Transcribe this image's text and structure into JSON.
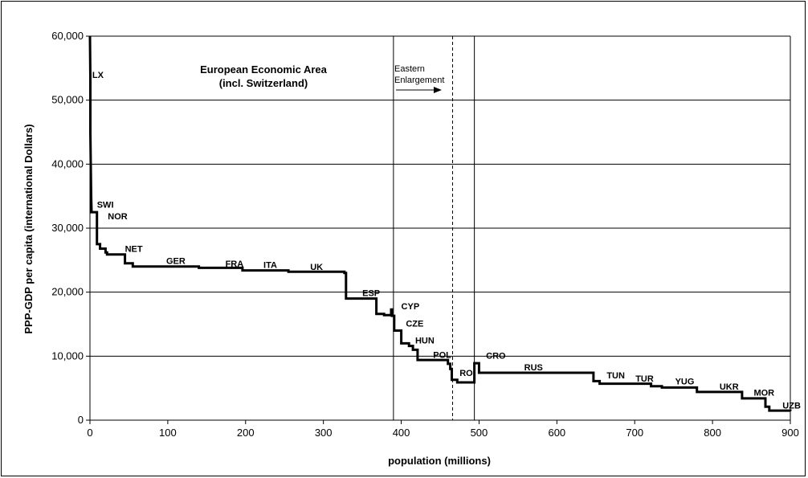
{
  "chart_data": {
    "type": "line",
    "step": true,
    "xlabel": "population (millions)",
    "ylabel": "PPP-GDP per capita (international Dollars)",
    "xlim": [
      0,
      900
    ],
    "ylim": [
      0,
      60000
    ],
    "x_ticks": [
      0,
      100,
      200,
      300,
      400,
      500,
      600,
      700,
      800,
      900
    ],
    "y_ticks": [
      0,
      10000,
      20000,
      30000,
      40000,
      50000,
      60000
    ],
    "x_tick_labels": [
      "0",
      "100",
      "200",
      "300",
      "400",
      "500",
      "600",
      "700",
      "800",
      "900"
    ],
    "y_tick_labels": [
      "0",
      "10,000",
      "20,000",
      "30,000",
      "40,000",
      "50,000",
      "60,000"
    ],
    "grid": "horizontal",
    "series": [
      {
        "color": "#000000",
        "points": [
          [
            0,
            60000
          ],
          [
            0.5,
            53500
          ],
          [
            0.5,
            45000
          ],
          [
            1,
            40000
          ],
          [
            1.5,
            35000
          ],
          [
            2,
            33000
          ],
          [
            2,
            32500
          ],
          [
            9,
            32500
          ],
          [
            9,
            27500
          ],
          [
            13,
            27500
          ],
          [
            13,
            26800
          ],
          [
            20,
            26800
          ],
          [
            20,
            26200
          ],
          [
            22,
            26200
          ],
          [
            22,
            25900
          ],
          [
            45,
            25900
          ],
          [
            45,
            24500
          ],
          [
            55,
            24500
          ],
          [
            55,
            24000
          ],
          [
            140,
            24000
          ],
          [
            140,
            23800
          ],
          [
            196,
            23800
          ],
          [
            196,
            23400
          ],
          [
            255,
            23400
          ],
          [
            255,
            23200
          ],
          [
            327,
            23200
          ],
          [
            327,
            23000
          ],
          [
            329,
            23000
          ],
          [
            329,
            19000
          ],
          [
            368,
            19000
          ],
          [
            368,
            16600
          ],
          [
            378,
            16600
          ],
          [
            378,
            16400
          ],
          [
            387,
            16400
          ],
          [
            387,
            17300
          ],
          [
            388,
            17300
          ],
          [
            388,
            16300
          ],
          [
            391,
            16300
          ],
          [
            391,
            14000
          ],
          [
            400,
            14000
          ],
          [
            400,
            12000
          ],
          [
            410,
            12000
          ],
          [
            410,
            11600
          ],
          [
            415,
            11600
          ],
          [
            415,
            11000
          ],
          [
            421,
            11000
          ],
          [
            421,
            9400
          ],
          [
            460,
            9400
          ],
          [
            460,
            8800
          ],
          [
            463,
            8800
          ],
          [
            463,
            8000
          ],
          [
            465,
            8000
          ],
          [
            465,
            6300
          ],
          [
            472,
            6300
          ],
          [
            472,
            5900
          ],
          [
            494,
            5900
          ],
          [
            494,
            8900
          ],
          [
            500,
            8900
          ],
          [
            500,
            7400
          ],
          [
            647,
            7400
          ],
          [
            647,
            6100
          ],
          [
            655,
            6100
          ],
          [
            655,
            5700
          ],
          [
            721,
            5700
          ],
          [
            721,
            5300
          ],
          [
            735,
            5300
          ],
          [
            735,
            5100
          ],
          [
            780,
            5100
          ],
          [
            780,
            4400
          ],
          [
            838,
            4400
          ],
          [
            838,
            3400
          ],
          [
            868,
            3400
          ],
          [
            868,
            2100
          ],
          [
            873,
            2100
          ],
          [
            873,
            1500
          ],
          [
            900,
            1500
          ],
          [
            900,
            1400
          ]
        ]
      }
    ],
    "country_labels": [
      {
        "text": "LX",
        "x": 3,
        "y": 53500
      },
      {
        "text": "SWI",
        "x": 9,
        "y": 33200
      },
      {
        "text": "NOR",
        "x": 23,
        "y": 31400
      },
      {
        "text": "NET",
        "x": 45,
        "y": 26300
      },
      {
        "text": "GER",
        "x": 98,
        "y": 24400
      },
      {
        "text": "FRA",
        "x": 174,
        "y": 24000
      },
      {
        "text": "ITA",
        "x": 223,
        "y": 23800
      },
      {
        "text": "UK",
        "x": 283,
        "y": 23500
      },
      {
        "text": "ESP",
        "x": 350,
        "y": 19400
      },
      {
        "text": "CYP",
        "x": 400,
        "y": 17300
      },
      {
        "text": "CZE",
        "x": 406,
        "y": 14600
      },
      {
        "text": "HUN",
        "x": 418,
        "y": 12000
      },
      {
        "text": "POL",
        "x": 441,
        "y": 9700
      },
      {
        "text": "CRO",
        "x": 509,
        "y": 9600
      },
      {
        "text": "RO",
        "x": 475,
        "y": 6900
      },
      {
        "text": "RUS",
        "x": 558,
        "y": 7800
      },
      {
        "text": "TUN",
        "x": 664,
        "y": 6500
      },
      {
        "text": "TUR",
        "x": 701,
        "y": 6000
      },
      {
        "text": "YUG",
        "x": 752,
        "y": 5600
      },
      {
        "text": "UKR",
        "x": 809,
        "y": 4800
      },
      {
        "text": "MOR",
        "x": 853,
        "y": 3800
      },
      {
        "text": "UZB",
        "x": 890,
        "y": 1800
      }
    ],
    "reference_lines": [
      {
        "x": 390,
        "style": "solid"
      },
      {
        "x": 466,
        "style": "dashed"
      },
      {
        "x": 494,
        "style": "solid"
      }
    ],
    "annotations": {
      "eea_line1": "European Economic Area",
      "eea_line2": "(incl. Switzerland)",
      "ee_line1": "Eastern",
      "ee_line2": "Enlargement"
    }
  }
}
